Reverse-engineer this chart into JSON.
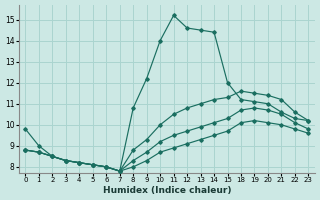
{
  "xlabel": "Humidex (Indice chaleur)",
  "bg_color": "#cce8e4",
  "grid_color": "#aad4cf",
  "line_color": "#1a6e60",
  "xlim": [
    -0.5,
    23.5
  ],
  "ylim": [
    7.7,
    15.7
  ],
  "yticks": [
    8,
    9,
    10,
    11,
    12,
    13,
    14,
    15
  ],
  "xticks": [
    0,
    1,
    2,
    3,
    4,
    5,
    6,
    7,
    8,
    9,
    10,
    11,
    12,
    13,
    14,
    15,
    18,
    19,
    20,
    21,
    22,
    23
  ],
  "xtick_labels": [
    "0",
    "1",
    "2",
    "3",
    "4",
    "5",
    "6",
    "7",
    "8",
    "9",
    "10",
    "11",
    "12",
    "13",
    "14",
    "15",
    "18",
    "19",
    "20",
    "21",
    "22",
    "23"
  ],
  "curves": [
    {
      "x": [
        0,
        1,
        2,
        3,
        4,
        5,
        6,
        7,
        8,
        9,
        10,
        11,
        12,
        13,
        14,
        15,
        18,
        19,
        20,
        21,
        22,
        23
      ],
      "y": [
        9.8,
        9.0,
        8.5,
        8.3,
        8.2,
        8.1,
        8.0,
        7.8,
        10.8,
        12.2,
        14.0,
        15.2,
        14.6,
        14.5,
        14.4,
        12.0,
        11.2,
        11.1,
        11.0,
        10.6,
        10.3,
        10.2
      ]
    },
    {
      "x": [
        0,
        1,
        2,
        3,
        4,
        5,
        6,
        7,
        8,
        9,
        10,
        11,
        12,
        13,
        14,
        15,
        18,
        19,
        20,
        21,
        22,
        23
      ],
      "y": [
        8.8,
        8.7,
        8.5,
        8.3,
        8.2,
        8.1,
        8.0,
        7.8,
        8.8,
        9.3,
        10.0,
        10.5,
        10.8,
        11.0,
        11.2,
        11.3,
        11.6,
        11.5,
        11.4,
        11.2,
        10.6,
        10.2
      ]
    },
    {
      "x": [
        0,
        1,
        2,
        3,
        4,
        5,
        6,
        7,
        8,
        9,
        10,
        11,
        12,
        13,
        14,
        15,
        18,
        19,
        20,
        21,
        22,
        23
      ],
      "y": [
        8.8,
        8.7,
        8.5,
        8.3,
        8.2,
        8.1,
        8.0,
        7.8,
        8.3,
        8.7,
        9.2,
        9.5,
        9.7,
        9.9,
        10.1,
        10.3,
        10.7,
        10.8,
        10.7,
        10.5,
        10.1,
        9.8
      ]
    },
    {
      "x": [
        0,
        1,
        2,
        3,
        4,
        5,
        6,
        7,
        8,
        9,
        10,
        11,
        12,
        13,
        14,
        15,
        18,
        19,
        20,
        21,
        22,
        23
      ],
      "y": [
        8.8,
        8.7,
        8.5,
        8.3,
        8.2,
        8.1,
        8.0,
        7.8,
        8.0,
        8.3,
        8.7,
        8.9,
        9.1,
        9.3,
        9.5,
        9.7,
        10.1,
        10.2,
        10.1,
        10.0,
        9.8,
        9.6
      ]
    }
  ]
}
